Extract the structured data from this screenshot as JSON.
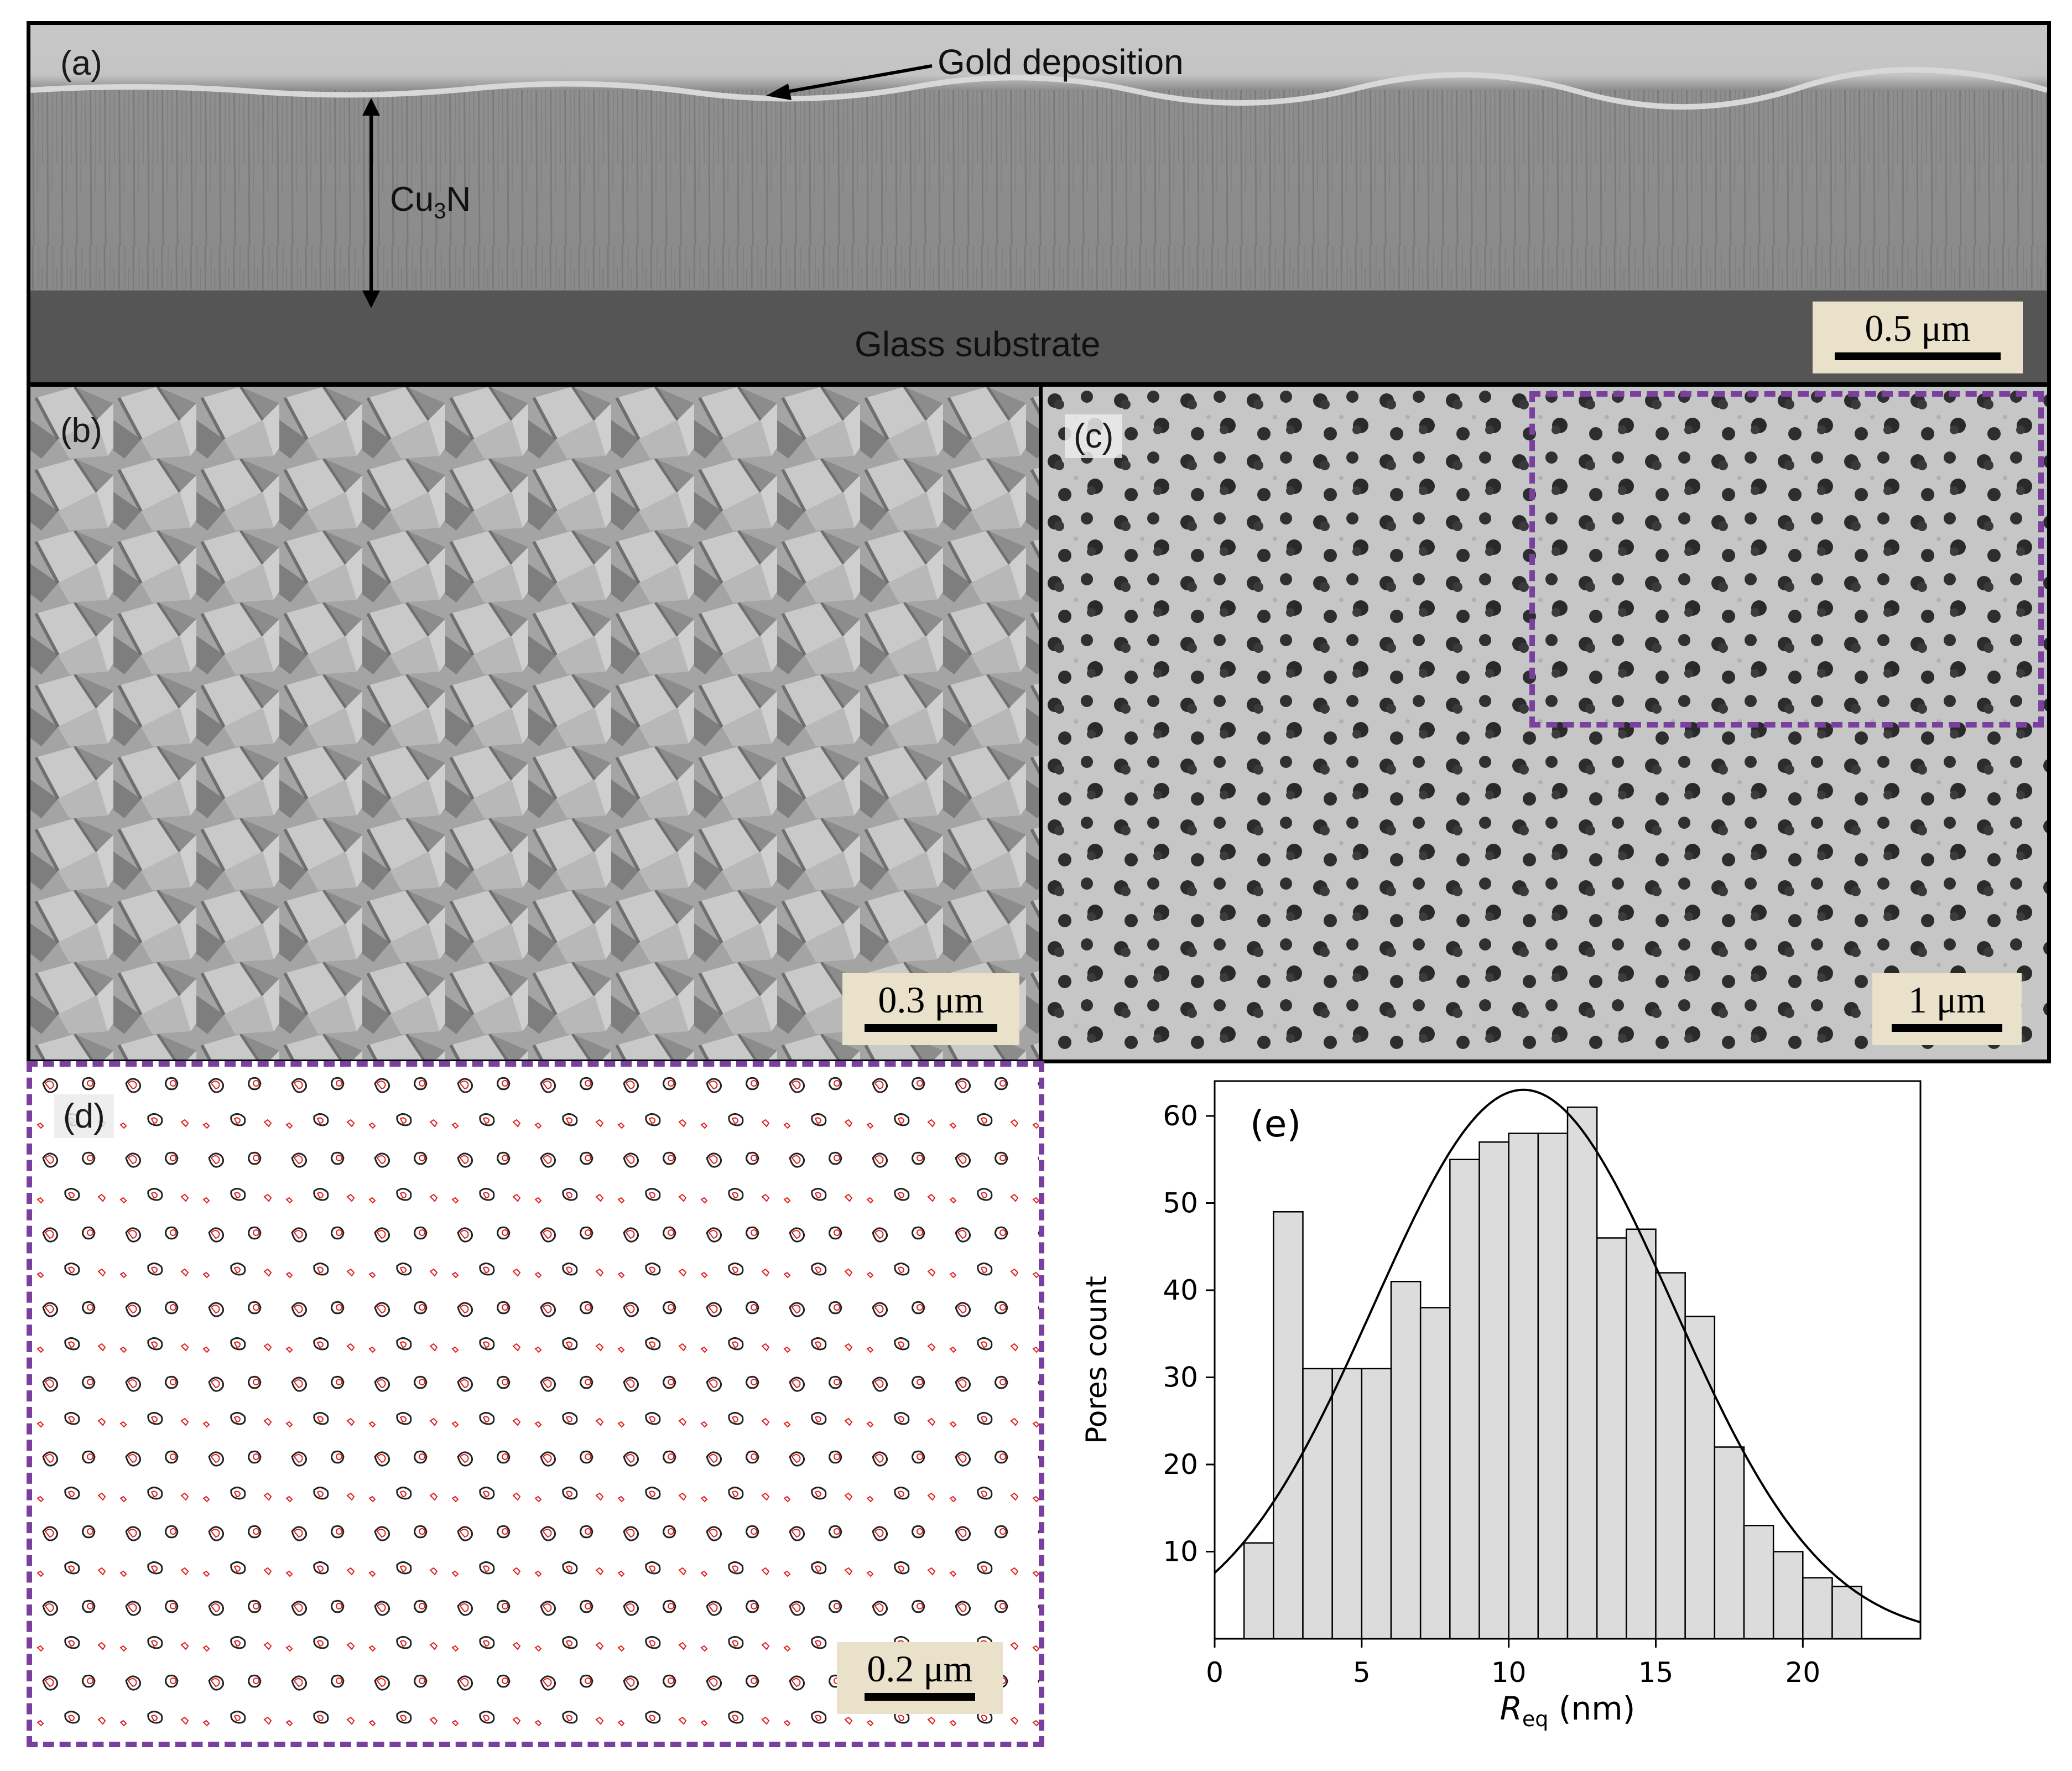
{
  "panel_a": {
    "label": "(a)",
    "annotation_gold": "Gold deposition",
    "annotation_layer_main": "Cu",
    "annotation_layer_sub": "3",
    "annotation_layer_tail": "N",
    "annotation_substrate": "Glass substrate",
    "scale": "0.5 μm"
  },
  "panel_b": {
    "label": "(b)",
    "scale": "0.3 μm"
  },
  "panel_c": {
    "label": "(c)",
    "scale": "1 μm"
  },
  "panel_d": {
    "label": "(d)",
    "scale": "0.2 μm"
  },
  "colors": {
    "frame": "#000000",
    "highlight_box": "#7b3fa0",
    "pore_outline_black": "#222222",
    "pore_outline_red": "#e02020",
    "scalebar_bg": "#e9e1c9",
    "histogram_fill": "#dcdcdc"
  },
  "chart_data": {
    "type": "bar",
    "panel_label": "(e)",
    "xlabel_main": "R",
    "xlabel_sub": "eq",
    "xlabel_unit": " (nm)",
    "ylabel": "Pores count",
    "xlim": [
      0,
      24
    ],
    "ylim": [
      0,
      64
    ],
    "xticks": [
      0,
      5,
      10,
      15,
      20
    ],
    "yticks": [
      10,
      20,
      30,
      40,
      50,
      60
    ],
    "bin_width": 1,
    "bins_start": [
      1,
      2,
      3,
      4,
      5,
      6,
      7,
      8,
      9,
      10,
      11,
      12,
      13,
      14,
      15,
      16,
      17,
      18,
      19,
      20,
      21
    ],
    "values": [
      11,
      49,
      31,
      31,
      31,
      41,
      38,
      55,
      57,
      58,
      58,
      61,
      46,
      47,
      42,
      37,
      22,
      13,
      10,
      7,
      6
    ],
    "fit_curve": {
      "type": "gaussian",
      "amplitude": 63,
      "mean": 10.5,
      "sigma": 5.1
    },
    "grid": false
  }
}
